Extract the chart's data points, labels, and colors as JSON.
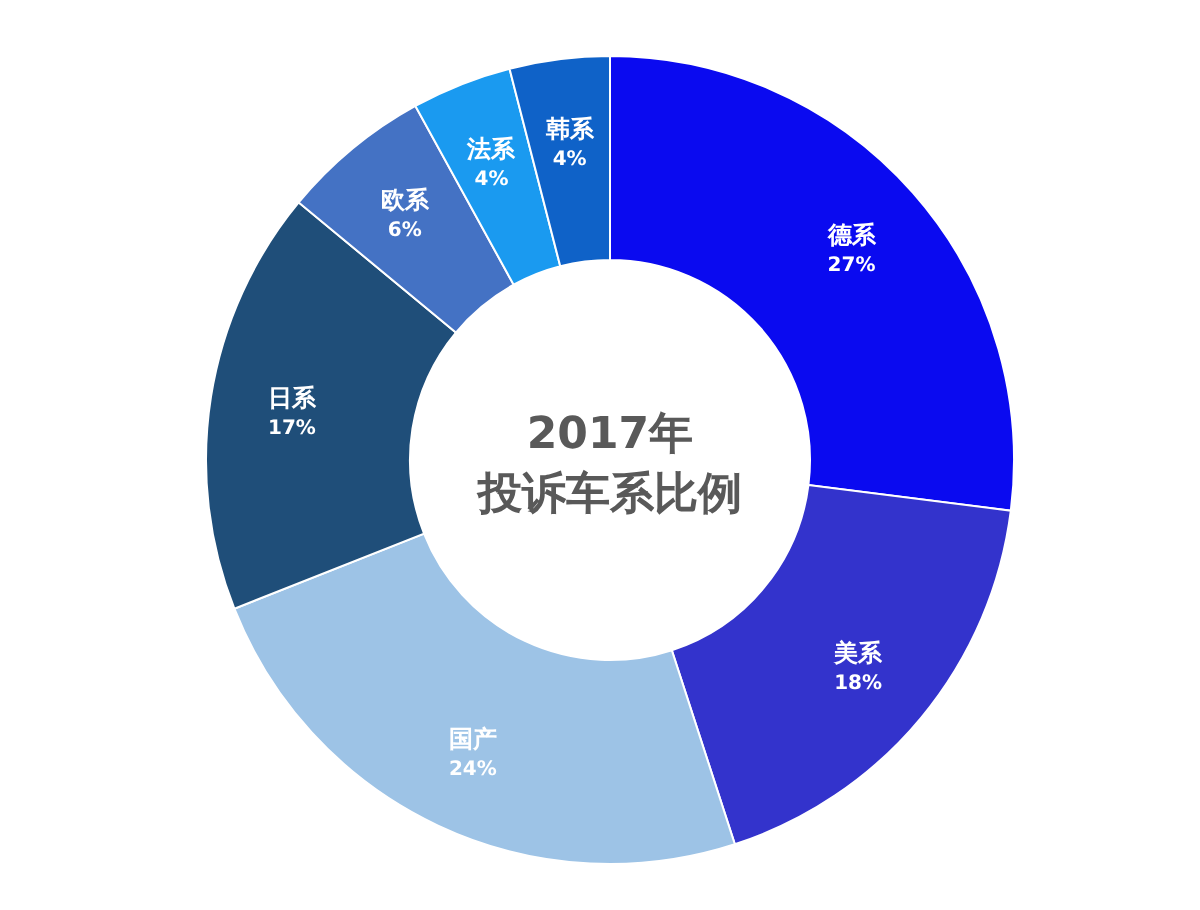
{
  "chart_data": {
    "type": "donut",
    "title": "2017年",
    "subtitle": "投诉车系比例",
    "categories": [
      "德系",
      "美系",
      "国产",
      "日系",
      "欧系",
      "法系",
      "韩系"
    ],
    "values": [
      27,
      18,
      24,
      17,
      6,
      4,
      4
    ],
    "value_labels": [
      "27%",
      "18%",
      "24%",
      "17%",
      "6%",
      "4%",
      "4%"
    ],
    "colors": [
      "#0a0af0",
      "#3333cc",
      "#9dc3e6",
      "#1f4e79",
      "#4472c4",
      "#1a9af0",
      "#0f62c8"
    ]
  }
}
